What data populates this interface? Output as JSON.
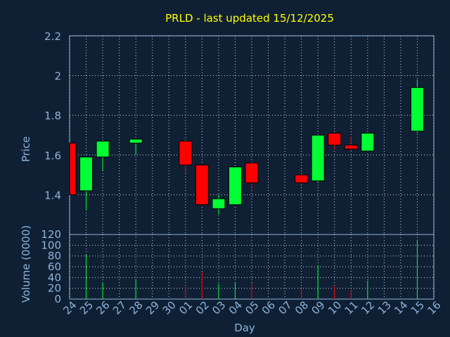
{
  "title": "PRLD - last updated 15/12/2025",
  "colors": {
    "background": "#0f2035",
    "text": "#8fb3d9",
    "title": "#ffff00",
    "grid": "#ffffff",
    "up": "#00ff33",
    "down": "#ff0000"
  },
  "chart_data": [
    {
      "type": "candlestick",
      "ylabel": "Price",
      "ylim": [
        1.2,
        2.2
      ],
      "yticks": [
        "2.2",
        "2",
        "1.8",
        "1.6",
        "1.4"
      ],
      "grid": true,
      "candles": [
        {
          "x": "24",
          "open": 1.66,
          "close": 1.4,
          "high": 1.66,
          "low": 1.4
        },
        {
          "x": "25",
          "open": 1.42,
          "close": 1.59,
          "high": 1.59,
          "low": 1.32
        },
        {
          "x": "26",
          "open": 1.59,
          "close": 1.67,
          "high": 1.67,
          "low": 1.52
        },
        {
          "x": "28",
          "open": 1.66,
          "close": 1.68,
          "high": 1.68,
          "low": 1.6
        },
        {
          "x": "01",
          "open": 1.67,
          "close": 1.55,
          "high": 1.67,
          "low": 1.51
        },
        {
          "x": "02",
          "open": 1.55,
          "close": 1.35,
          "high": 1.55,
          "low": 1.35
        },
        {
          "x": "03",
          "open": 1.33,
          "close": 1.38,
          "high": 1.4,
          "low": 1.3
        },
        {
          "x": "04",
          "open": 1.35,
          "close": 1.54,
          "high": 1.54,
          "low": 1.35
        },
        {
          "x": "05",
          "open": 1.56,
          "close": 1.46,
          "high": 1.56,
          "low": 1.43
        },
        {
          "x": "08",
          "open": 1.5,
          "close": 1.46,
          "high": 1.5,
          "low": 1.45
        },
        {
          "x": "09",
          "open": 1.47,
          "close": 1.7,
          "high": 1.7,
          "low": 1.46
        },
        {
          "x": "10",
          "open": 1.71,
          "close": 1.65,
          "high": 1.71,
          "low": 1.63
        },
        {
          "x": "11",
          "open": 1.65,
          "close": 1.63,
          "high": 1.69,
          "low": 1.62
        },
        {
          "x": "12",
          "open": 1.62,
          "close": 1.71,
          "high": 1.71,
          "low": 1.62
        },
        {
          "x": "15",
          "open": 1.72,
          "close": 1.94,
          "high": 1.98,
          "low": 1.71
        }
      ]
    },
    {
      "type": "bar",
      "ylabel": "Volume (0000)",
      "xlabel": "Day",
      "ylim": [
        0,
        120
      ],
      "yticks": [
        "120",
        "100",
        "80",
        "60",
        "40",
        "20",
        "0"
      ],
      "categories": [
        "24",
        "25",
        "26",
        "27",
        "28",
        "29",
        "30",
        "01",
        "02",
        "03",
        "04",
        "05",
        "06",
        "07",
        "08",
        "09",
        "10",
        "11",
        "12",
        "13",
        "14",
        "15",
        "16"
      ],
      "values": [
        0,
        82,
        31,
        0,
        37,
        0,
        0,
        27,
        50,
        28,
        30,
        29,
        0,
        0,
        22,
        63,
        24,
        17,
        34,
        0,
        0,
        110,
        0
      ],
      "bar_colors": [
        "none",
        "up",
        "up",
        "none",
        "up",
        "none",
        "none",
        "down",
        "down",
        "up",
        "up",
        "down",
        "none",
        "none",
        "down",
        "up",
        "down",
        "down",
        "up",
        "none",
        "none",
        "up",
        "none"
      ]
    }
  ]
}
